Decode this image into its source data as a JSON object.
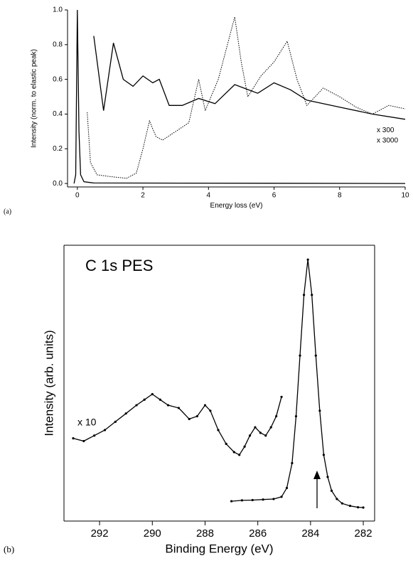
{
  "chart_data": [
    {
      "type": "line",
      "panel": "(a)",
      "xlabel": "Energy loss (eV)",
      "ylabel": "Intensity (norm. to elastic peak)",
      "xlim": [
        -0.3,
        10
      ],
      "ylim": [
        -0.02,
        1.0
      ],
      "xticks": [
        0,
        2,
        4,
        6,
        8,
        10
      ],
      "yticks": [
        {
          "value": 0,
          "label": "0.0"
        },
        {
          "value": 0.2,
          "label": "0.2"
        },
        {
          "value": 0.4,
          "label": "0.4"
        },
        {
          "value": 0.6,
          "label": "0.6"
        },
        {
          "value": 0.8,
          "label": "0.8"
        },
        {
          "value": 1.0,
          "label": "1.0"
        }
      ],
      "series": [
        {
          "color": "#000000",
          "style": "solid",
          "x": [
            -0.1,
            -0.05,
            0,
            0.05,
            0.1,
            0.2,
            0.5,
            10
          ],
          "values": [
            0,
            0.05,
            1.0,
            0.3,
            0.05,
            0.01,
            0.003,
            0
          ]
        },
        {
          "name": "x 3000",
          "color": "#000000",
          "style": "solid",
          "x": [
            0.5,
            0.8,
            1.1,
            1.4,
            1.7,
            2.0,
            2.3,
            2.5,
            2.8,
            3.2,
            3.7,
            4.2,
            4.8,
            5.5,
            6.0,
            6.5,
            7.0,
            8.0,
            9.0,
            10.0
          ],
          "values": [
            0.85,
            0.42,
            0.81,
            0.6,
            0.56,
            0.62,
            0.58,
            0.6,
            0.45,
            0.45,
            0.49,
            0.46,
            0.57,
            0.52,
            0.58,
            0.54,
            0.48,
            0.44,
            0.4,
            0.37
          ]
        },
        {
          "name": "x 300",
          "color": "#000000",
          "style": "dotted",
          "x": [
            0.3,
            0.4,
            0.6,
            1.0,
            1.5,
            1.8,
            2.0,
            2.2,
            2.4,
            2.6,
            3.0,
            3.4,
            3.7,
            3.9,
            4.3,
            4.8,
            5.0,
            5.2,
            5.6,
            6.0,
            6.4,
            6.7,
            7.0,
            7.5,
            8.0,
            8.5,
            9.0,
            9.5,
            10.0
          ],
          "values": [
            0.41,
            0.12,
            0.05,
            0.04,
            0.03,
            0.06,
            0.2,
            0.36,
            0.27,
            0.25,
            0.3,
            0.35,
            0.6,
            0.42,
            0.6,
            0.96,
            0.7,
            0.5,
            0.62,
            0.7,
            0.82,
            0.6,
            0.45,
            0.55,
            0.5,
            0.44,
            0.4,
            0.45,
            0.43
          ]
        }
      ]
    },
    {
      "type": "line",
      "panel": "(b)",
      "title": "C 1s PES",
      "xlabel": "Binding Energy (eV)",
      "ylabel": "Intensity (arb. units)",
      "xlim": [
        293.35,
        281.57
      ],
      "ylim": [
        0,
        100
      ],
      "xticks": [
        292,
        290,
        288,
        286,
        284,
        282
      ],
      "series": [
        {
          "name": "x 10",
          "color": "#000000",
          "style": "solid",
          "marker": true,
          "x": [
            293.0,
            292.6,
            292.2,
            291.8,
            291.4,
            291.0,
            290.6,
            290.3,
            290.0,
            289.7,
            289.4,
            289.0,
            288.6,
            288.3,
            288.0,
            287.8,
            287.5,
            287.2,
            286.9,
            286.7,
            286.5,
            286.3,
            286.1,
            285.9,
            285.7,
            285.5,
            285.3,
            285.1
          ],
          "values": [
            30,
            29,
            31,
            33,
            36,
            39,
            42,
            44,
            46,
            44,
            42,
            41,
            37,
            38,
            42,
            40,
            33,
            28,
            25,
            24,
            27,
            31,
            34,
            32,
            31,
            34,
            38,
            45
          ]
        },
        {
          "color": "#000000",
          "style": "solid",
          "marker": true,
          "x": [
            287.0,
            286.6,
            286.2,
            285.8,
            285.4,
            285.1,
            284.9,
            284.7,
            284.55,
            284.4,
            284.25,
            284.1,
            283.95,
            283.8,
            283.65,
            283.5,
            283.35,
            283.2,
            283.0,
            282.8,
            282.5,
            282.2,
            282.0
          ],
          "values": [
            7.2,
            7.5,
            7.6,
            7.8,
            8.0,
            8.8,
            12,
            21,
            38,
            60,
            82,
            94.8,
            82,
            60,
            40,
            24,
            16,
            11,
            8,
            6.4,
            5.5,
            5.0,
            4.9
          ]
        }
      ]
    }
  ]
}
